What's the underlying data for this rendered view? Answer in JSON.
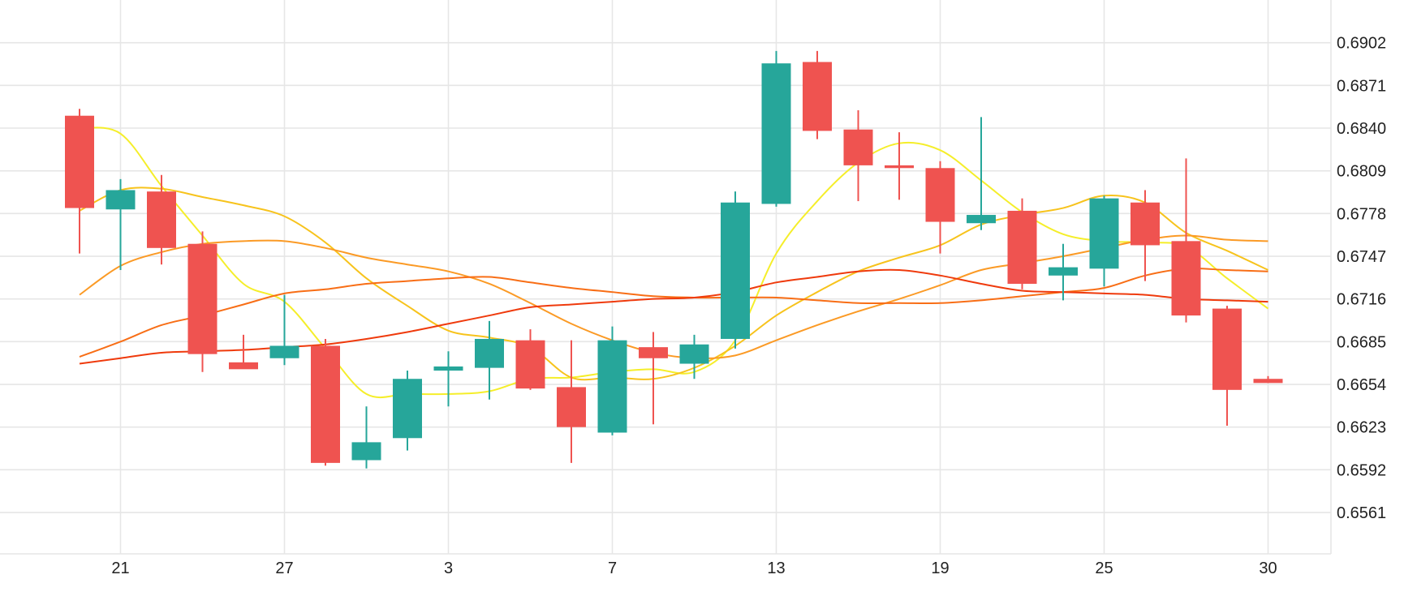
{
  "chart_data": {
    "type": "candlestick",
    "x_tick_labels": [
      "21",
      "27",
      "3",
      "7",
      "13",
      "19",
      "25",
      "30"
    ],
    "x_tick_indices": [
      1,
      5,
      9,
      13,
      17,
      21,
      25,
      29
    ],
    "y_ticks": [
      0.6561,
      0.6592,
      0.6623,
      0.6654,
      0.6685,
      0.6716,
      0.6747,
      0.6778,
      0.6809,
      0.684,
      0.6871,
      0.6902
    ],
    "ylim": [
      0.6531,
      0.6933
    ],
    "grid": true,
    "y_axis_side": "right",
    "colors": {
      "up": "#26a69a",
      "down": "#ef5350",
      "grid": "#e6e6e6",
      "axis_text": "#222222"
    },
    "candles": [
      {
        "o": 0.6849,
        "h": 0.6854,
        "l": 0.6749,
        "c": 0.6782
      },
      {
        "o": 0.6781,
        "h": 0.6803,
        "l": 0.6737,
        "c": 0.6795
      },
      {
        "o": 0.6794,
        "h": 0.6806,
        "l": 0.6741,
        "c": 0.6753
      },
      {
        "o": 0.6756,
        "h": 0.6765,
        "l": 0.6663,
        "c": 0.6676
      },
      {
        "o": 0.667,
        "h": 0.669,
        "l": 0.6667,
        "c": 0.6665
      },
      {
        "o": 0.6673,
        "h": 0.6719,
        "l": 0.6668,
        "c": 0.6682
      },
      {
        "o": 0.6682,
        "h": 0.6687,
        "l": 0.6595,
        "c": 0.6597
      },
      {
        "o": 0.6599,
        "h": 0.6638,
        "l": 0.6593,
        "c": 0.6612
      },
      {
        "o": 0.6615,
        "h": 0.6664,
        "l": 0.6606,
        "c": 0.6658
      },
      {
        "o": 0.6664,
        "h": 0.6678,
        "l": 0.6638,
        "c": 0.6667
      },
      {
        "o": 0.6666,
        "h": 0.67,
        "l": 0.6643,
        "c": 0.6687
      },
      {
        "o": 0.6686,
        "h": 0.6694,
        "l": 0.665,
        "c": 0.6651
      },
      {
        "o": 0.6652,
        "h": 0.6686,
        "l": 0.6597,
        "c": 0.6623
      },
      {
        "o": 0.6619,
        "h": 0.6696,
        "l": 0.6617,
        "c": 0.6686
      },
      {
        "o": 0.6681,
        "h": 0.6692,
        "l": 0.6625,
        "c": 0.6673
      },
      {
        "o": 0.6669,
        "h": 0.669,
        "l": 0.6658,
        "c": 0.6683
      },
      {
        "o": 0.6687,
        "h": 0.6794,
        "l": 0.668,
        "c": 0.6786
      },
      {
        "o": 0.6785,
        "h": 0.6896,
        "l": 0.6783,
        "c": 0.6887
      },
      {
        "o": 0.6888,
        "h": 0.6896,
        "l": 0.6832,
        "c": 0.6838
      },
      {
        "o": 0.6839,
        "h": 0.6853,
        "l": 0.6787,
        "c": 0.6813
      },
      {
        "o": 0.6813,
        "h": 0.6837,
        "l": 0.6788,
        "c": 0.6811
      },
      {
        "o": 0.6811,
        "h": 0.6816,
        "l": 0.6749,
        "c": 0.6772
      },
      {
        "o": 0.6771,
        "h": 0.6848,
        "l": 0.6766,
        "c": 0.6777
      },
      {
        "o": 0.678,
        "h": 0.6789,
        "l": 0.6723,
        "c": 0.6727
      },
      {
        "o": 0.6733,
        "h": 0.6756,
        "l": 0.6715,
        "c": 0.6739
      },
      {
        "o": 0.6738,
        "h": 0.6791,
        "l": 0.6725,
        "c": 0.6789
      },
      {
        "o": 0.6786,
        "h": 0.6795,
        "l": 0.6729,
        "c": 0.6755
      },
      {
        "o": 0.6758,
        "h": 0.6818,
        "l": 0.6699,
        "c": 0.6704
      },
      {
        "o": 0.6709,
        "h": 0.6711,
        "l": 0.6624,
        "c": 0.665
      },
      {
        "o": 0.6658,
        "h": 0.666,
        "l": 0.6655,
        "c": 0.6655
      }
    ],
    "series": [
      {
        "color": "#f5ee2a",
        "values": [
          0.684,
          0.6836,
          0.6798,
          0.6762,
          0.6727,
          0.6714,
          0.668,
          0.6647,
          0.6647,
          0.6647,
          0.6649,
          0.6658,
          0.6659,
          0.6663,
          0.6665,
          0.6663,
          0.6686,
          0.6749,
          0.6787,
          0.6815,
          0.6829,
          0.6824,
          0.6802,
          0.6779,
          0.6763,
          0.6758,
          0.6757,
          0.6754,
          0.6731,
          0.6709
        ]
      },
      {
        "color": "#f7c31c",
        "values": [
          0.678,
          0.6795,
          0.6796,
          0.679,
          0.6784,
          0.6776,
          0.6757,
          0.6731,
          0.6711,
          0.6693,
          0.6688,
          0.6681,
          0.6659,
          0.6659,
          0.6658,
          0.6666,
          0.6682,
          0.6704,
          0.6721,
          0.6736,
          0.6746,
          0.6755,
          0.677,
          0.6777,
          0.6782,
          0.6791,
          0.6786,
          0.6764,
          0.6751,
          0.6737
        ]
      },
      {
        "color": "#fb9a25",
        "values": [
          0.6719,
          0.674,
          0.675,
          0.6756,
          0.6758,
          0.6758,
          0.6753,
          0.6746,
          0.6741,
          0.6736,
          0.6727,
          0.6713,
          0.6698,
          0.6686,
          0.6677,
          0.6673,
          0.6675,
          0.6686,
          0.6697,
          0.6707,
          0.6716,
          0.6726,
          0.6737,
          0.6742,
          0.6747,
          0.6753,
          0.6759,
          0.6762,
          0.6759,
          0.6758
        ]
      },
      {
        "color": "#f86e16",
        "values": [
          0.6674,
          0.6685,
          0.6697,
          0.6704,
          0.6712,
          0.672,
          0.6723,
          0.6727,
          0.6729,
          0.6731,
          0.6732,
          0.6728,
          0.6724,
          0.6721,
          0.6718,
          0.6717,
          0.6717,
          0.6717,
          0.6715,
          0.6713,
          0.6713,
          0.6713,
          0.6715,
          0.6718,
          0.6721,
          0.6724,
          0.6733,
          0.6738,
          0.6737,
          0.6736
        ]
      },
      {
        "color": "#ef3a0c",
        "values": [
          0.6669,
          0.6673,
          0.6677,
          0.6678,
          0.6679,
          0.6681,
          0.6683,
          0.6687,
          0.6692,
          0.6698,
          0.6704,
          0.671,
          0.6712,
          0.6714,
          0.6716,
          0.6717,
          0.6721,
          0.6728,
          0.6732,
          0.6736,
          0.6737,
          0.6733,
          0.6727,
          0.6722,
          0.6721,
          0.672,
          0.6719,
          0.6716,
          0.6715,
          0.6714
        ]
      }
    ]
  }
}
